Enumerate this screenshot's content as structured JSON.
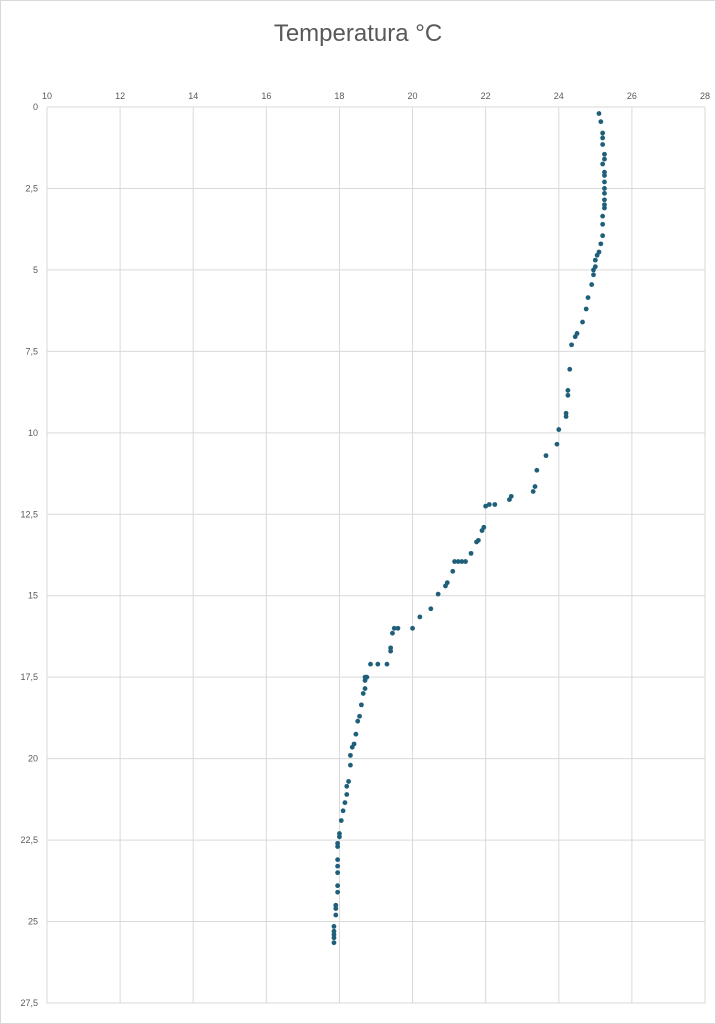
{
  "chart_data": {
    "type": "scatter",
    "title": "Temperatura °C",
    "xlabel": "",
    "ylabel": "",
    "x_axis_position": "top",
    "y_axis_reversed": true,
    "xlim": [
      10,
      28
    ],
    "ylim": [
      0,
      27.5
    ],
    "x_ticks": [
      "10",
      "12",
      "14",
      "16",
      "18",
      "20",
      "22",
      "24",
      "26",
      "28"
    ],
    "y_ticks": [
      "0",
      "2,5",
      "5",
      "7,5",
      "10",
      "12,5",
      "15",
      "17,5",
      "20",
      "22,5",
      "25",
      "27,5"
    ],
    "grid": true,
    "marker_color": "#1f5f7a",
    "series": [
      {
        "points": [
          [
            25.1,
            0.2
          ],
          [
            25.15,
            0.45
          ],
          [
            25.2,
            0.8
          ],
          [
            25.2,
            0.95
          ],
          [
            25.2,
            1.15
          ],
          [
            25.25,
            1.45
          ],
          [
            25.25,
            1.6
          ],
          [
            25.2,
            1.75
          ],
          [
            25.25,
            2.0
          ],
          [
            25.25,
            2.1
          ],
          [
            25.25,
            2.3
          ],
          [
            25.25,
            2.5
          ],
          [
            25.25,
            2.65
          ],
          [
            25.25,
            2.85
          ],
          [
            25.25,
            3.0
          ],
          [
            25.25,
            3.1
          ],
          [
            25.2,
            3.35
          ],
          [
            25.2,
            3.6
          ],
          [
            25.2,
            3.95
          ],
          [
            25.15,
            4.2
          ],
          [
            25.1,
            4.45
          ],
          [
            25.05,
            4.55
          ],
          [
            25.0,
            4.7
          ],
          [
            25.0,
            4.9
          ],
          [
            24.95,
            5.0
          ],
          [
            24.95,
            5.15
          ],
          [
            24.9,
            5.45
          ],
          [
            24.8,
            5.85
          ],
          [
            24.75,
            6.2
          ],
          [
            24.65,
            6.6
          ],
          [
            24.5,
            6.95
          ],
          [
            24.45,
            7.05
          ],
          [
            24.35,
            7.3
          ],
          [
            24.3,
            8.05
          ],
          [
            24.25,
            8.7
          ],
          [
            24.25,
            8.85
          ],
          [
            24.2,
            9.4
          ],
          [
            24.2,
            9.5
          ],
          [
            24.0,
            9.9
          ],
          [
            23.95,
            10.35
          ],
          [
            23.65,
            10.7
          ],
          [
            23.4,
            11.15
          ],
          [
            23.35,
            11.65
          ],
          [
            23.3,
            11.8
          ],
          [
            22.7,
            11.95
          ],
          [
            22.65,
            12.05
          ],
          [
            22.25,
            12.2
          ],
          [
            22.1,
            12.2
          ],
          [
            22.0,
            12.25
          ],
          [
            21.95,
            12.9
          ],
          [
            21.9,
            13.0
          ],
          [
            21.8,
            13.3
          ],
          [
            21.75,
            13.35
          ],
          [
            21.6,
            13.7
          ],
          [
            21.45,
            13.95
          ],
          [
            21.35,
            13.95
          ],
          [
            21.25,
            13.95
          ],
          [
            21.15,
            13.95
          ],
          [
            21.1,
            14.25
          ],
          [
            20.95,
            14.6
          ],
          [
            20.9,
            14.7
          ],
          [
            20.7,
            14.95
          ],
          [
            20.5,
            15.4
          ],
          [
            20.2,
            15.65
          ],
          [
            20.0,
            16.0
          ],
          [
            19.6,
            16.0
          ],
          [
            19.5,
            16.0
          ],
          [
            19.45,
            16.15
          ],
          [
            19.4,
            16.6
          ],
          [
            19.4,
            16.7
          ],
          [
            19.3,
            17.1
          ],
          [
            19.05,
            17.1
          ],
          [
            18.85,
            17.1
          ],
          [
            18.75,
            17.5
          ],
          [
            18.7,
            17.5
          ],
          [
            18.7,
            17.6
          ],
          [
            18.7,
            17.85
          ],
          [
            18.65,
            18.0
          ],
          [
            18.6,
            18.35
          ],
          [
            18.55,
            18.7
          ],
          [
            18.5,
            18.85
          ],
          [
            18.45,
            19.25
          ],
          [
            18.4,
            19.55
          ],
          [
            18.35,
            19.65
          ],
          [
            18.3,
            19.9
          ],
          [
            18.3,
            20.2
          ],
          [
            18.25,
            20.7
          ],
          [
            18.2,
            20.85
          ],
          [
            18.2,
            21.1
          ],
          [
            18.15,
            21.35
          ],
          [
            18.1,
            21.6
          ],
          [
            18.05,
            21.9
          ],
          [
            18.0,
            22.3
          ],
          [
            18.0,
            22.4
          ],
          [
            17.95,
            22.6
          ],
          [
            17.95,
            22.7
          ],
          [
            17.95,
            23.1
          ],
          [
            17.95,
            23.3
          ],
          [
            17.95,
            23.5
          ],
          [
            17.95,
            23.9
          ],
          [
            17.95,
            24.1
          ],
          [
            17.9,
            24.5
          ],
          [
            17.9,
            24.6
          ],
          [
            17.9,
            24.8
          ],
          [
            17.85,
            25.15
          ],
          [
            17.85,
            25.3
          ],
          [
            17.85,
            25.4
          ],
          [
            17.85,
            25.5
          ],
          [
            17.85,
            25.65
          ]
        ]
      }
    ]
  }
}
